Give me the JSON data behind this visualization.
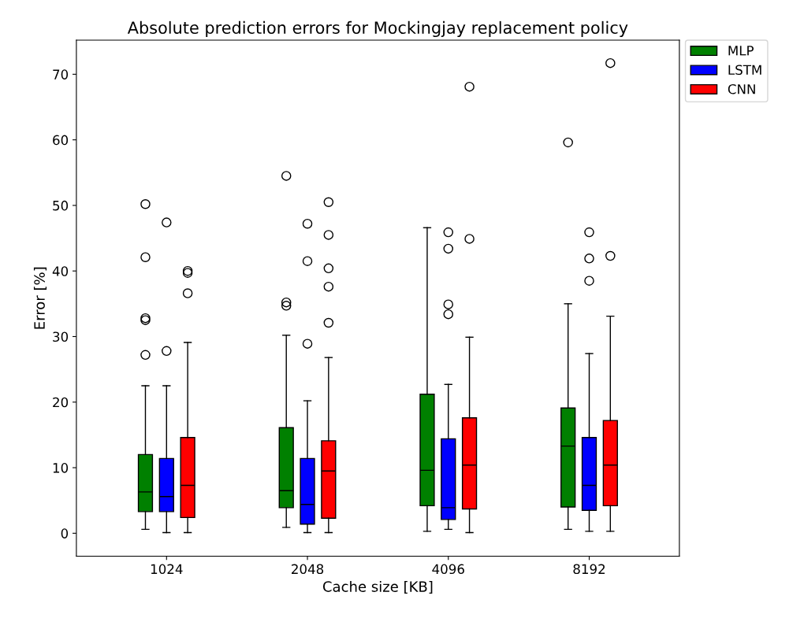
{
  "chart_data": {
    "type": "box",
    "title": "Absolute prediction errors for Mockingjay replacement policy",
    "xlabel": "Cache size [KB]",
    "ylabel": "Error [%]",
    "categories": [
      "1024",
      "2048",
      "4096",
      "8192"
    ],
    "ylim": [
      -3.5,
      75.2
    ],
    "yticks": [
      0,
      10,
      20,
      30,
      40,
      50,
      60,
      70
    ],
    "grid": false,
    "legend": "top right",
    "marker": "circle",
    "series": [
      {
        "name": "MLP",
        "color": "#008000",
        "boxes": [
          {
            "low": 0.6,
            "q1": 3.3,
            "median": 6.3,
            "q3": 12.0,
            "high": 22.5,
            "outliers": [
              27.2,
              32.5,
              32.8,
              42.1,
              50.2
            ]
          },
          {
            "low": 0.9,
            "q1": 3.9,
            "median": 6.5,
            "q3": 16.1,
            "high": 30.2,
            "outliers": [
              34.7,
              35.2,
              54.5
            ]
          },
          {
            "low": 0.3,
            "q1": 4.2,
            "median": 9.6,
            "q3": 21.2,
            "high": 46.6
          },
          {
            "low": 0.6,
            "q1": 4.0,
            "median": 13.3,
            "q3": 19.1,
            "high": 35.0,
            "outliers": [
              59.6
            ]
          }
        ]
      },
      {
        "name": "LSTM",
        "color": "#0000ff",
        "boxes": [
          {
            "low": 0.1,
            "q1": 3.3,
            "median": 5.6,
            "q3": 11.4,
            "high": 22.5,
            "outliers": [
              27.8,
              47.4
            ]
          },
          {
            "low": 0.1,
            "q1": 1.4,
            "median": 4.4,
            "q3": 11.4,
            "high": 20.2,
            "outliers": [
              28.9,
              41.5,
              47.2
            ]
          },
          {
            "low": 0.6,
            "q1": 2.1,
            "median": 3.9,
            "q3": 14.4,
            "high": 22.7,
            "outliers": [
              33.4,
              34.9,
              43.4,
              45.9
            ]
          },
          {
            "low": 0.3,
            "q1": 3.5,
            "median": 7.3,
            "q3": 14.6,
            "high": 27.4,
            "outliers": [
              38.5,
              41.9,
              45.9
            ]
          }
        ]
      },
      {
        "name": "CNN",
        "color": "#ff0000",
        "boxes": [
          {
            "low": 0.1,
            "q1": 2.4,
            "median": 7.3,
            "q3": 14.6,
            "high": 29.1,
            "outliers": [
              36.6,
              39.7,
              40.0
            ]
          },
          {
            "low": 0.1,
            "q1": 2.3,
            "median": 9.5,
            "q3": 14.1,
            "high": 26.8,
            "outliers": [
              32.1,
              37.6,
              40.4,
              45.5,
              50.5
            ]
          },
          {
            "low": 0.1,
            "q1": 3.7,
            "median": 10.4,
            "q3": 17.6,
            "high": 29.9,
            "outliers": [
              44.9,
              68.1
            ]
          },
          {
            "low": 0.3,
            "q1": 4.2,
            "median": 10.4,
            "q3": 17.2,
            "high": 33.1,
            "outliers": [
              42.3,
              71.7
            ]
          }
        ]
      }
    ]
  }
}
